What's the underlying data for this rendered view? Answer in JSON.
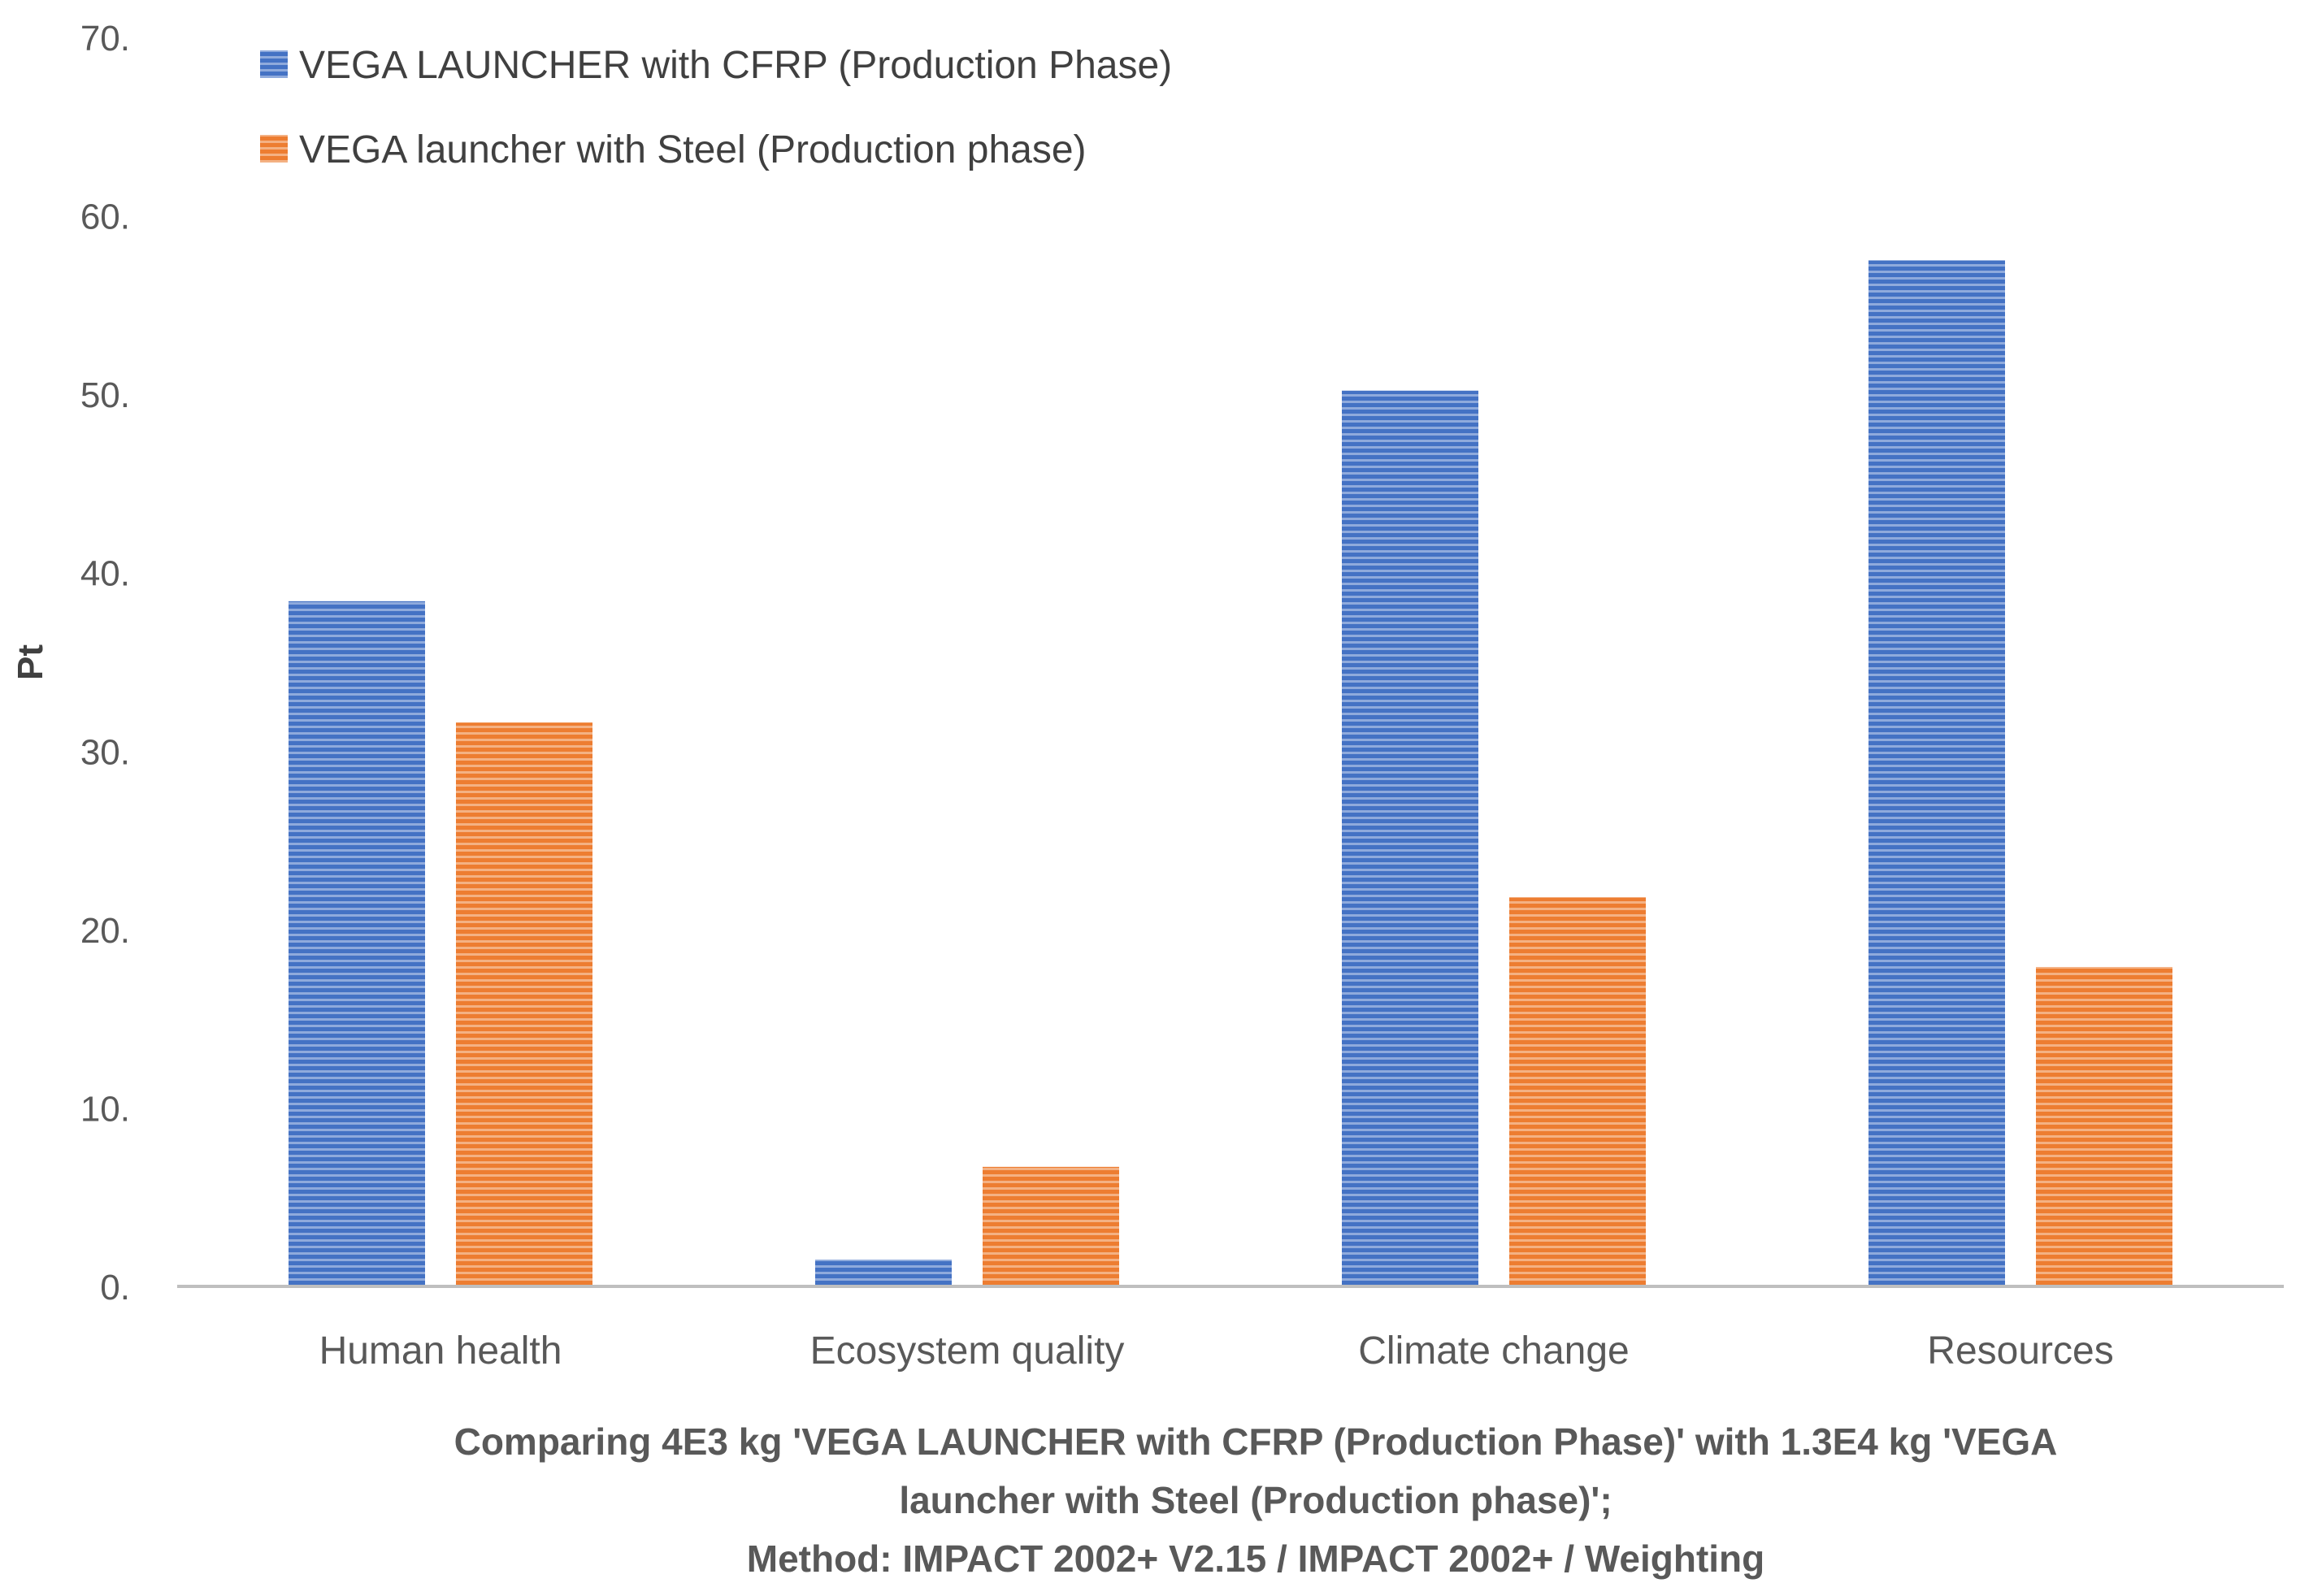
{
  "chart_data": {
    "type": "bar",
    "categories": [
      "Human health",
      "Ecosystem quality",
      "Climate change",
      "Resources"
    ],
    "series": [
      {
        "name": "VEGA LAUNCHER with CFRP (Production Phase)",
        "values": [
          38.4,
          1.5,
          50.2,
          57.5
        ],
        "color": "#4472C4"
      },
      {
        "name": "VEGA launcher with Steel (Production phase)",
        "values": [
          31.6,
          6.7,
          21.8,
          17.9
        ],
        "color": "#ED7D31"
      }
    ],
    "xlabel_lines": [
      "Comparing 4E3 kg 'VEGA LAUNCHER with CFRP (Production Phase)' with 1.3E4 kg 'VEGA",
      "launcher with Steel (Production phase)';",
      "Method: IMPACT 2002+ V2.15 / IMPACT 2002+ / Weighting"
    ],
    "ylabel": "Pt",
    "ylim": [
      0,
      70
    ],
    "yticks": [
      "0.",
      "10.",
      "20.",
      "30.",
      "40.",
      "50.",
      "60.",
      "70."
    ],
    "grid": false,
    "legend_position": "top-left"
  }
}
